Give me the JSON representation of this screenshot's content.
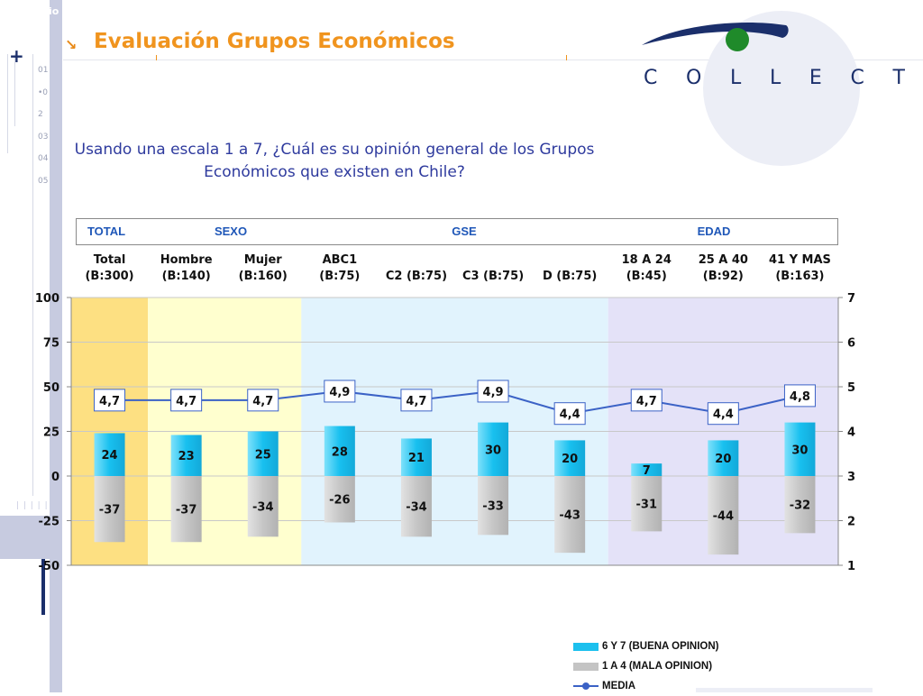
{
  "header": {
    "title": "Evaluación Grupos Económicos",
    "corner_mark": "io",
    "left_numbers": [
      "01",
      "•0",
      "2",
      "03",
      "04",
      "05"
    ],
    "ticks_mark": "| | | | |",
    "logo_letters": [
      "C",
      "O",
      "L",
      "L",
      "E",
      "C",
      "T"
    ]
  },
  "question": "Usando una escala 1 a 7, ¿Cuál es su opinión general de los Grupos Económicos que existen en Chile?",
  "groups": [
    {
      "label": "TOTAL"
    },
    {
      "label": "SEXO"
    },
    {
      "label": "GSE"
    },
    {
      "label": "EDAD"
    }
  ],
  "legend": {
    "positive": "6 Y 7 (BUENA OPINION)",
    "negative": "1 A 4 (MALA OPINION)",
    "media": "MEDIA"
  },
  "colors": {
    "positive": "#1cc0ee",
    "negative": "#c4c4c4",
    "media_line": "#3b62c6",
    "bg_total": "#fde082",
    "bg_sexo": "#ffffcf",
    "bg_gse": "#e1f3fd",
    "bg_edad": "#e4e2f8"
  },
  "chart_data": {
    "type": "bar",
    "categories": [
      [
        "Total",
        "(B:300)"
      ],
      [
        "Hombre",
        "(B:140)"
      ],
      [
        "Mujer",
        "(B:160)"
      ],
      [
        "ABC1",
        "(B:75)"
      ],
      [
        "C2 (B:75)"
      ],
      [
        "C3 (B:75)"
      ],
      [
        "D (B:75)"
      ],
      [
        "18 A 24",
        "(B:45)"
      ],
      [
        "25 A 40",
        "(B:92)"
      ],
      [
        "41 Y MAS",
        "(B:163)"
      ]
    ],
    "series": [
      {
        "name": "6 Y 7 (BUENA OPINION)",
        "axis": "left",
        "values": [
          24,
          23,
          25,
          28,
          21,
          30,
          20,
          7,
          20,
          30
        ]
      },
      {
        "name": "1 A 4 (MALA OPINION)",
        "axis": "left",
        "values": [
          -37,
          -37,
          -34,
          -26,
          -34,
          -33,
          -43,
          -31,
          -44,
          -32
        ]
      },
      {
        "name": "MEDIA",
        "axis": "right",
        "type": "line",
        "values": [
          4.7,
          4.7,
          4.7,
          4.9,
          4.7,
          4.9,
          4.4,
          4.7,
          4.4,
          4.8
        ],
        "labels": [
          "4,7",
          "4,7",
          "4,7",
          "4,9",
          "4,7",
          "4,9",
          "4,4",
          "4,7",
          "4,4",
          "4,8"
        ]
      }
    ],
    "category_groups": [
      {
        "label": "TOTAL",
        "start": 0,
        "end": 0
      },
      {
        "label": "SEXO",
        "start": 1,
        "end": 2
      },
      {
        "label": "GSE",
        "start": 3,
        "end": 6
      },
      {
        "label": "EDAD",
        "start": 7,
        "end": 9
      }
    ],
    "ylim_left": [
      -50,
      100
    ],
    "yticks_left": [
      -50,
      -25,
      0,
      25,
      50,
      75,
      100
    ],
    "ylim_right": [
      1,
      7
    ],
    "yticks_right": [
      1,
      2,
      3,
      4,
      5,
      6,
      7
    ],
    "grid": true,
    "legend_position": "bottom-right"
  }
}
